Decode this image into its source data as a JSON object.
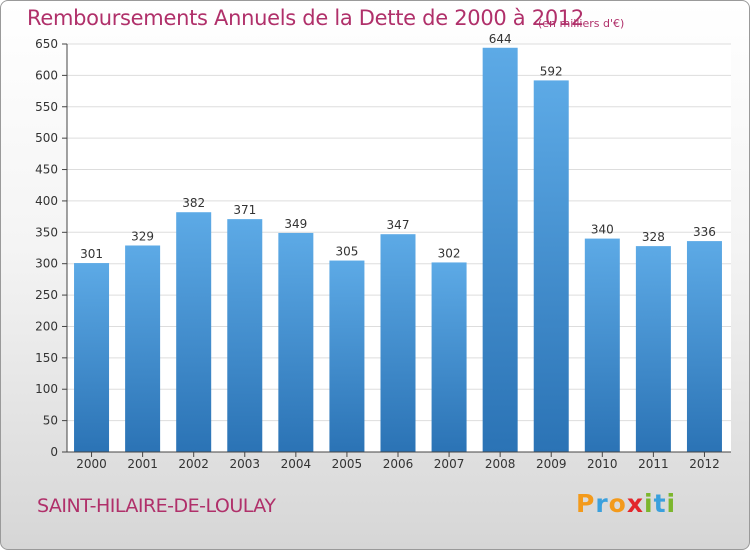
{
  "header": {
    "title": "Remboursements Annuels de la Dette de 2000 à 2012",
    "subtitle": "(en milliers d'€)"
  },
  "footer": {
    "commune": "SAINT-HILAIRE-DE-LOULAY",
    "logo": {
      "letters": [
        "P",
        "r",
        "o",
        "x",
        "i",
        "t",
        "i"
      ],
      "colors": [
        "#f39a1b",
        "#3aa0dd",
        "#f39a1b",
        "#e3262b",
        "#7cb62d",
        "#3aa0dd",
        "#7cb62d"
      ]
    }
  },
  "chart_data": {
    "type": "bar",
    "title": "Remboursements Annuels de la Dette de 2000 à 2012",
    "subtitle": "(en milliers d'€)",
    "xlabel": "",
    "ylabel": "",
    "categories": [
      "2000",
      "2001",
      "2002",
      "2003",
      "2004",
      "2005",
      "2006",
      "2007",
      "2008",
      "2009",
      "2010",
      "2011",
      "2012"
    ],
    "values": [
      301,
      329,
      382,
      371,
      349,
      305,
      347,
      302,
      644,
      592,
      340,
      328,
      336
    ],
    "ylim": [
      0,
      650
    ],
    "yticks": [
      0,
      50,
      100,
      150,
      200,
      250,
      300,
      350,
      400,
      450,
      500,
      550,
      600,
      650
    ],
    "grid": true,
    "colors": {
      "bar_top": "#5daae6",
      "bar_bottom": "#2b73b5",
      "grid": "#dddddd",
      "axis": "#444444"
    }
  }
}
